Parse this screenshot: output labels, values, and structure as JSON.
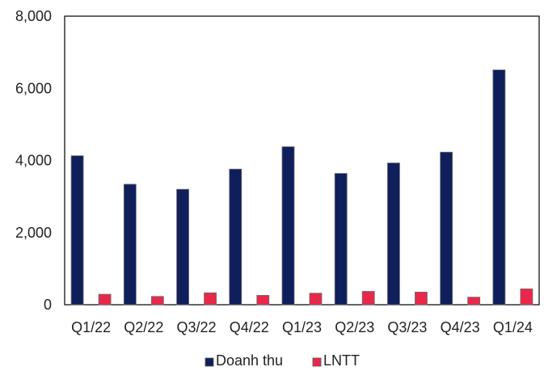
{
  "chart_data": {
    "type": "bar",
    "title": "",
    "xlabel": "",
    "ylabel": "",
    "categories": [
      "Q1/22",
      "Q2/22",
      "Q3/22",
      "Q4/22",
      "Q1/23",
      "Q2/23",
      "Q3/23",
      "Q4/23",
      "Q1/24"
    ],
    "series": [
      {
        "name": "Doanh thu",
        "color": "#0f1f5c",
        "values": [
          4130,
          3340,
          3200,
          3760,
          4380,
          3640,
          3930,
          4230,
          6510
        ]
      },
      {
        "name": "LNTT",
        "color": "#e8284a",
        "values": [
          290,
          230,
          330,
          260,
          320,
          370,
          350,
          210,
          440
        ]
      }
    ],
    "ylim": [
      0,
      8000
    ],
    "yticks": [
      {
        "value": 0,
        "label": "0"
      },
      {
        "value": 2000,
        "label": "2,000"
      },
      {
        "value": 4000,
        "label": "4,000"
      },
      {
        "value": 6000,
        "label": "6,000"
      },
      {
        "value": 8000,
        "label": "8,000"
      }
    ],
    "grid": false,
    "legend_position": "bottom-center"
  }
}
